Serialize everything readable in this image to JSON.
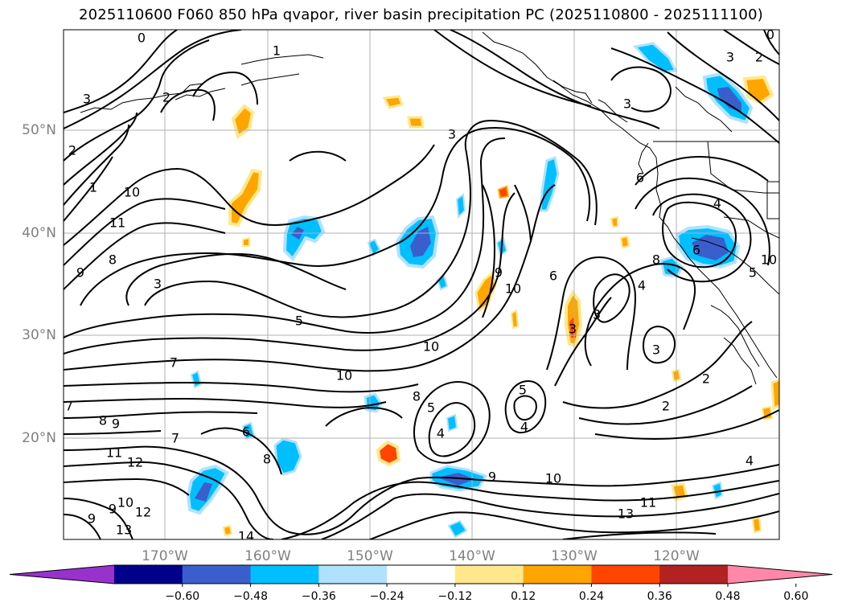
{
  "title": "2025110600 F060 850 hPa qvapor, river basin precipitation PC (2025110800 - 2025111100)",
  "lat_labels": [
    "50°N",
    "40°N",
    "30°N",
    "20°N"
  ],
  "lon_labels": [
    "170°W",
    "160°W",
    "150°W",
    "140°W",
    "130°W",
    "120°W"
  ],
  "colorbar": {
    "ticks": [
      "−0.60",
      "−0.48",
      "−0.36",
      "−0.24",
      "−0.12",
      "0.12",
      "0.24",
      "0.36",
      "0.48",
      "0.60"
    ],
    "colors": [
      "#9932CC",
      "#00008B",
      "#3A5FCD",
      "#00BFFF",
      "#B0E2FF",
      "#FFFFFF",
      "#FFE88C",
      "#FFA500",
      "#FF4500",
      "#B22222",
      "#FF88AA"
    ]
  },
  "contour_labels": [
    "0",
    "1",
    "2",
    "3",
    "2",
    "3",
    "1",
    "10",
    "11",
    "8",
    "9",
    "3",
    "3",
    "5",
    "10",
    "10",
    "9",
    "6",
    "10",
    "3",
    "3",
    "3",
    "4",
    "6",
    "4",
    "5",
    "6",
    "2",
    "2",
    "5",
    "4",
    "5",
    "4",
    "8",
    "7",
    "7",
    "8",
    "9",
    "6",
    "8",
    "7",
    "11",
    "12",
    "12",
    "10",
    "9",
    "13",
    "9",
    "10",
    "11",
    "13",
    "14",
    "0",
    "2",
    "3",
    "4",
    "9",
    "8",
    "10"
  ]
}
